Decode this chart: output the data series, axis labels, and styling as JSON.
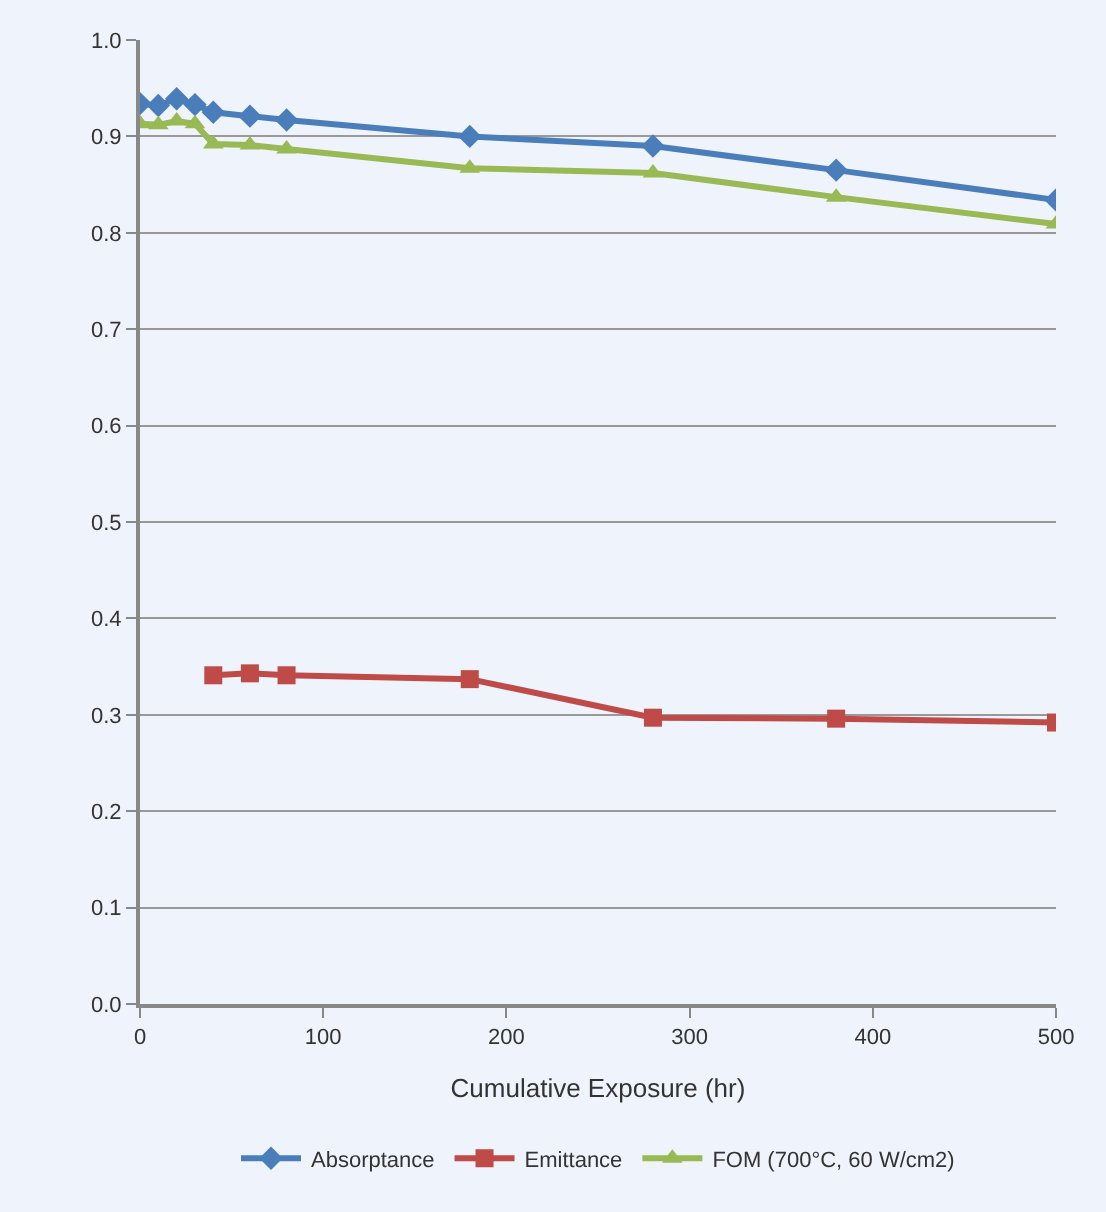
{
  "chart_data": {
    "type": "line",
    "xlabel": "Cumulative Exposure (hr)",
    "xlim": [
      0,
      500
    ],
    "xticks": [
      0,
      100,
      200,
      300,
      400,
      500
    ],
    "ylim": [
      0,
      1.0
    ],
    "yticks": [
      {
        "value": 0,
        "label": "0.0"
      },
      0.1,
      0.2,
      0.3,
      0.4,
      0.5,
      0.6,
      0.7,
      0.8,
      0.9,
      {
        "value": 1.0,
        "label": "1.0"
      }
    ],
    "grid": "y",
    "legend": "bottom",
    "series": [
      {
        "name": "Absorptance",
        "color": "#4a7ebb",
        "marker": "diamond",
        "x": [
          0,
          10,
          20,
          30,
          40,
          60,
          80,
          180,
          280,
          380,
          500
        ],
        "values": [
          0.934,
          0.932,
          0.939,
          0.933,
          0.925,
          0.921,
          0.917,
          0.9,
          0.89,
          0.865,
          0.834
        ]
      },
      {
        "name": "Emittance",
        "color": "#be4b48",
        "marker": "square",
        "x": [
          40,
          60,
          80,
          180,
          280,
          380,
          500
        ],
        "values": [
          0.341,
          0.343,
          0.341,
          0.337,
          0.297,
          0.296,
          0.292
        ]
      },
      {
        "name": "FOM (700°C, 60 W/cm2)",
        "color": "#98b954",
        "marker": "triangle",
        "x": [
          0,
          10,
          20,
          30,
          40,
          60,
          80,
          180,
          280,
          380,
          500
        ],
        "values": [
          0.913,
          0.912,
          0.916,
          0.913,
          0.892,
          0.891,
          0.887,
          0.867,
          0.862,
          0.837,
          0.809
        ]
      }
    ]
  }
}
